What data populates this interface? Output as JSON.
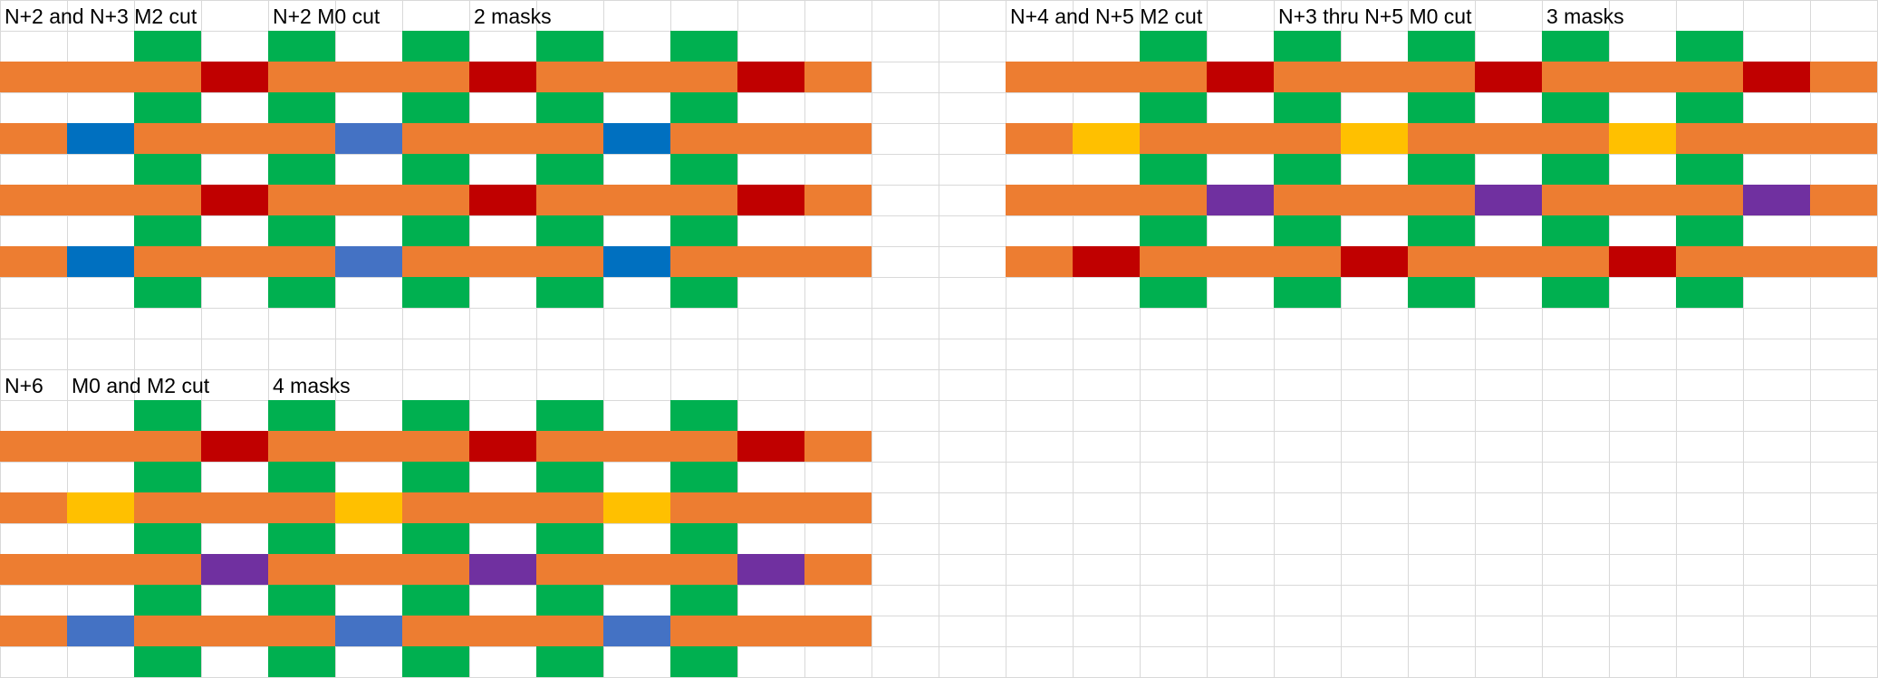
{
  "colors": {
    "green": "#00b050",
    "orange": "#ed7d31",
    "red": "#c00000",
    "blue": "#0070c0",
    "blue_light": "#4472c4",
    "yellow": "#ffc000",
    "purple": "#7030a0",
    "gridline": "#d9d9d9"
  },
  "panels": [
    {
      "id": "panel-top-left",
      "labels": [
        "N+2 and N+3 M2 cut",
        "N+2 M0 cut",
        "2 masks"
      ],
      "rows": [
        "..G.G.G.G.G..",
        "OOOROOOROOORO",
        "..G.G.G.G.G..",
        "OBOOOLOOOBOOO",
        "..G.G.G.G.G..",
        "OOOROOOROOORO",
        "..G.G.G.G.G..",
        "OBOOOLOOOBOOO",
        "..G.G.G.G.G.."
      ]
    },
    {
      "id": "panel-top-right",
      "labels": [
        "N+4 and N+5 M2 cut",
        "N+3 thru N+5 M0 cut",
        "3 masks"
      ],
      "rows": [
        "..G.G.G.G.G..",
        "OOOROOOROOORO",
        "..G.G.G.G.G..",
        "OYOOOYOOOYOOO",
        "..G.G.G.G.G..",
        "OOOPOOOPOOOPO",
        "..G.G.G.G.G..",
        "OROOOROOOROOO",
        "..G.G.G.G.G.."
      ]
    },
    {
      "id": "panel-bottom-left",
      "labels": [
        "N+6",
        "M0 and M2 cut",
        "4 masks"
      ],
      "rows": [
        "..G.G.G.G.G..",
        "OOOROOOROOORO",
        "..G.G.G.G.G..",
        "OYOOOYOOOYOOO",
        "..G.G.G.G.G..",
        "OOOPOOOPOOOPO",
        "..G.G.G.G.G..",
        "OLOOOLOOOLOOO",
        "..G.G.G.G.G.."
      ]
    }
  ]
}
